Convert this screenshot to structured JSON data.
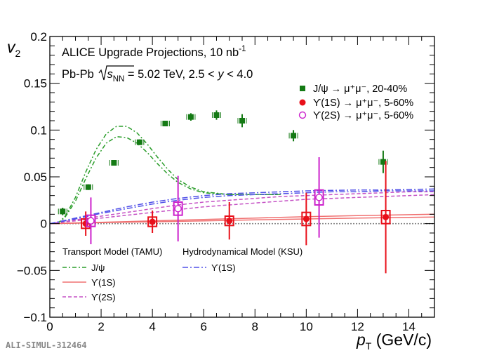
{
  "annotations": {
    "line1_prefix": "ALICE Upgrade Projections, 10 nb",
    "line1_sup": "-1",
    "line2_prefix": "Pb-Pb ",
    "line2_sqrt_s": "s",
    "line2_nn": "NN",
    "line2_value": " = 5.02 TeV, 2.5 < ",
    "line2_y": "y",
    "line2_suffix": " < 4.0"
  },
  "footer": "ALI-SIMUL-312464",
  "model_groups": {
    "transport": "Transport Model (TAMU)",
    "hydro": "Hydrodynamical Model (KSU)"
  },
  "model_legend": [
    {
      "label": "J/ψ",
      "color": "#2a9d2a",
      "dash": "6,3,2,3"
    },
    {
      "label": "ϒ(1S)",
      "color": "#f07070",
      "dash": ""
    },
    {
      "label": "ϒ(2S)",
      "color": "#c552c5",
      "dash": "5,3"
    },
    {
      "label": "ϒ(1S)",
      "color": "#5050e8",
      "dash": "8,3,2,3"
    }
  ],
  "chart_data": {
    "type": "scatter",
    "xlabel": "p",
    "xlabel_sub": "T",
    "xlabel_unit": " (GeV/c)",
    "ylabel": "v",
    "ylabel_sub": "2",
    "xlim": [
      0,
      15
    ],
    "ylim": [
      -0.1,
      0.2
    ],
    "x_ticks": [
      0,
      2,
      4,
      6,
      8,
      10,
      12,
      14
    ],
    "y_ticks": [
      -0.1,
      -0.05,
      0,
      0.05,
      0.1,
      0.15,
      0.2
    ],
    "y_tick_labels": [
      "−0.1",
      "−0.05",
      "0",
      "0.05",
      "0.1",
      "0.15",
      "0.2"
    ],
    "legend_position": "top-right",
    "series": [
      {
        "name": "J/ψ → μ⁺μ⁻, 20-40%",
        "marker": "square",
        "color": "#147a14",
        "points": [
          {
            "x": 0.5,
            "y": 0.013,
            "err": 0.004
          },
          {
            "x": 1.5,
            "y": 0.039,
            "err": 0.003
          },
          {
            "x": 2.5,
            "y": 0.065,
            "err": 0.003
          },
          {
            "x": 3.5,
            "y": 0.087,
            "err": 0.003
          },
          {
            "x": 4.5,
            "y": 0.107,
            "err": 0.003
          },
          {
            "x": 5.5,
            "y": 0.114,
            "err": 0.004
          },
          {
            "x": 6.5,
            "y": 0.116,
            "err": 0.005
          },
          {
            "x": 7.5,
            "y": 0.11,
            "err": 0.007
          },
          {
            "x": 9.5,
            "y": 0.094,
            "err": 0.006
          },
          {
            "x": 13.0,
            "y": 0.066,
            "err": 0.012
          }
        ]
      },
      {
        "name": "ϒ(1S) → μ⁺μ⁻, 5-60%",
        "marker": "circle",
        "color": "#e8101a",
        "points": [
          {
            "x": 1.4,
            "y": 0.0,
            "err": 0.013,
            "sys": 0.005
          },
          {
            "x": 4.0,
            "y": 0.002,
            "err": 0.012,
            "sys": 0.005
          },
          {
            "x": 7.0,
            "y": 0.003,
            "err": 0.02,
            "sys": 0.005
          },
          {
            "x": 10.0,
            "y": 0.005,
            "err": 0.028,
            "sys": 0.007
          },
          {
            "x": 13.1,
            "y": 0.007,
            "err": 0.06,
            "sys": 0.007
          }
        ]
      },
      {
        "name": "ϒ(2S) → μ⁺μ⁻, 5-60%",
        "marker": "open-circle",
        "color": "#cc22cc",
        "points": [
          {
            "x": 1.6,
            "y": 0.003,
            "err": 0.025,
            "sys": 0.006
          },
          {
            "x": 5.0,
            "y": 0.016,
            "err": 0.035,
            "sys": 0.007
          },
          {
            "x": 10.5,
            "y": 0.028,
            "err": 0.043,
            "sys": 0.008
          }
        ]
      }
    ],
    "models": [
      {
        "name": "J/ψ (TAMU) upper",
        "color": "#2a9d2a",
        "dash": "6,3,2,3",
        "x": [
          0.3,
          0.6,
          1.0,
          1.4,
          1.8,
          2.2,
          2.6,
          3.0,
          3.4,
          3.8,
          4.2,
          4.6,
          5.0,
          5.5,
          6.0,
          7.0,
          8.0,
          9.0
        ],
        "y": [
          0.0,
          0.008,
          0.028,
          0.055,
          0.079,
          0.096,
          0.104,
          0.104,
          0.097,
          0.085,
          0.071,
          0.058,
          0.047,
          0.039,
          0.034,
          0.031,
          0.031,
          0.031
        ]
      },
      {
        "name": "J/ψ (TAMU) lower",
        "color": "#2a9d2a",
        "dash": "6,3,2,3",
        "x": [
          0.3,
          0.6,
          1.0,
          1.4,
          1.8,
          2.2,
          2.6,
          3.0,
          3.4,
          3.8,
          4.2,
          4.6,
          5.0,
          5.5,
          6.0,
          7.0,
          8.0,
          9.0
        ],
        "y": [
          0.0,
          0.007,
          0.024,
          0.048,
          0.07,
          0.086,
          0.093,
          0.092,
          0.086,
          0.076,
          0.064,
          0.053,
          0.044,
          0.037,
          0.033,
          0.031,
          0.031,
          0.031
        ]
      },
      {
        "name": "ϒ(1S) (TAMU) upper",
        "color": "#f07070",
        "dash": "",
        "x": [
          0,
          2,
          4,
          6,
          8,
          10,
          12,
          15
        ],
        "y": [
          0.0,
          0.0015,
          0.003,
          0.0045,
          0.006,
          0.0075,
          0.0085,
          0.01
        ]
      },
      {
        "name": "ϒ(1S) (TAMU) lower",
        "color": "#f07070",
        "dash": "",
        "x": [
          0,
          2,
          4,
          6,
          8,
          10,
          12,
          15
        ],
        "y": [
          0.0,
          0.001,
          0.002,
          0.003,
          0.004,
          0.005,
          0.006,
          0.007
        ]
      },
      {
        "name": "ϒ(2S) (TAMU) upper",
        "color": "#c552c5",
        "dash": "5,3",
        "x": [
          0,
          1,
          2,
          3,
          4,
          5,
          6,
          7,
          8,
          9,
          10,
          11,
          12,
          13,
          14,
          15
        ],
        "y": [
          0.0,
          0.004,
          0.008,
          0.012,
          0.016,
          0.02,
          0.023,
          0.025,
          0.027,
          0.029,
          0.03,
          0.031,
          0.032,
          0.033,
          0.034,
          0.034
        ]
      },
      {
        "name": "ϒ(2S) (TAMU) lower",
        "color": "#c552c5",
        "dash": "5,3",
        "x": [
          0,
          1,
          2,
          3,
          4,
          5,
          6,
          7,
          8,
          9,
          10,
          11,
          12,
          13,
          14,
          15
        ],
        "y": [
          0.0,
          0.003,
          0.006,
          0.009,
          0.012,
          0.015,
          0.018,
          0.02,
          0.022,
          0.024,
          0.026,
          0.027,
          0.028,
          0.029,
          0.03,
          0.031
        ]
      },
      {
        "name": "ϒ(1S) (KSU) upper",
        "color": "#5050e8",
        "dash": "8,3,2,3",
        "x": [
          0,
          1,
          2,
          3,
          4,
          5,
          6,
          7,
          8,
          9,
          10,
          11,
          12,
          13,
          14,
          15
        ],
        "y": [
          0.0,
          0.006,
          0.012,
          0.018,
          0.023,
          0.027,
          0.03,
          0.032,
          0.033,
          0.034,
          0.035,
          0.0355,
          0.036,
          0.036,
          0.0365,
          0.037
        ]
      },
      {
        "name": "ϒ(1S) (KSU) lower",
        "color": "#5050e8",
        "dash": "8,3,2,3",
        "x": [
          0,
          1,
          2,
          3,
          4,
          5,
          6,
          7,
          8,
          9,
          10,
          11,
          12,
          13,
          14,
          15
        ],
        "y": [
          0.0,
          0.005,
          0.011,
          0.016,
          0.021,
          0.025,
          0.028,
          0.03,
          0.031,
          0.032,
          0.033,
          0.034,
          0.034,
          0.035,
          0.035,
          0.035
        ]
      }
    ]
  }
}
